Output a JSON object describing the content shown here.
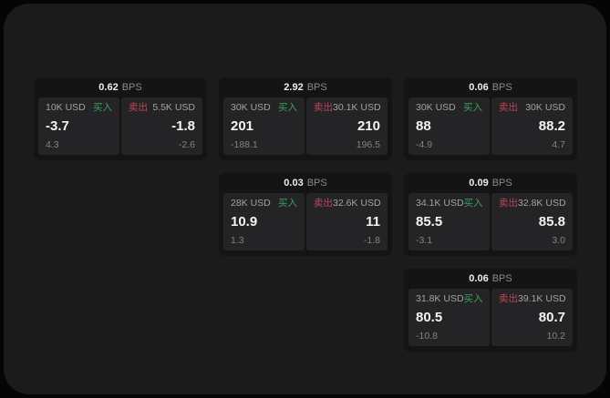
{
  "labels": {
    "bps": "BPS",
    "buy": "买入",
    "sell": "卖出"
  },
  "colors": {
    "page_background": "#050505",
    "surface_background": "#1b1b1c",
    "card_background": "#141415",
    "tile_background": "#242426",
    "buy_green": "#3ba05f",
    "sell_red": "#bc4757"
  },
  "cards": [
    {
      "col": 1,
      "row": 1,
      "bps": "0.62",
      "buy": {
        "amount": "10K USD",
        "price": "-3.7",
        "delta": "4.3"
      },
      "sell": {
        "amount": "5.5K USD",
        "price": "-1.8",
        "delta": "-2.6"
      }
    },
    {
      "col": 2,
      "row": 1,
      "bps": "2.92",
      "buy": {
        "amount": "30K USD",
        "price": "201",
        "delta": "-188.1"
      },
      "sell": {
        "amount": "30.1K USD",
        "price": "210",
        "delta": "196.5"
      }
    },
    {
      "col": 3,
      "row": 1,
      "bps": "0.06",
      "buy": {
        "amount": "30K USD",
        "price": "88",
        "delta": "-4.9"
      },
      "sell": {
        "amount": "30K USD",
        "price": "88.2",
        "delta": "4.7"
      }
    },
    {
      "col": 2,
      "row": 2,
      "bps": "0.03",
      "buy": {
        "amount": "28K USD",
        "price": "10.9",
        "delta": "1.3"
      },
      "sell": {
        "amount": "32.6K USD",
        "price": "11",
        "delta": "-1.8"
      }
    },
    {
      "col": 3,
      "row": 2,
      "bps": "0.09",
      "buy": {
        "amount": "34.1K USD",
        "price": "85.5",
        "delta": "-3.1"
      },
      "sell": {
        "amount": "32.8K USD",
        "price": "85.8",
        "delta": "3.0"
      }
    },
    {
      "col": 3,
      "row": 3,
      "bps": "0.06",
      "buy": {
        "amount": "31.8K USD",
        "price": "80.5",
        "delta": "-10.8"
      },
      "sell": {
        "amount": "39.1K USD",
        "price": "80.7",
        "delta": "10.2"
      }
    }
  ]
}
